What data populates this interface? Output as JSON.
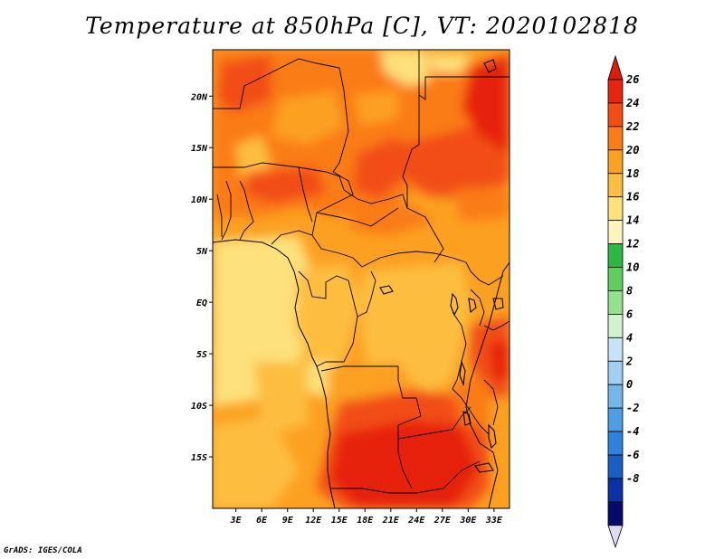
{
  "title": "Temperature at 850hPa [C], VT: 2020102818",
  "credit": "GrADS: IGES/COLA",
  "map": {
    "region": "Central Africa",
    "lat_ticks": [
      "20N",
      "15N",
      "10N",
      "5N",
      "EQ",
      "5S",
      "10S",
      "15S"
    ],
    "lat_values": [
      20,
      15,
      10,
      5,
      0,
      -5,
      -10,
      -15
    ],
    "lon_ticks": [
      "3E",
      "6E",
      "9E",
      "12E",
      "15E",
      "18E",
      "21E",
      "24E",
      "27E",
      "30E",
      "33E"
    ],
    "lon_values": [
      3,
      6,
      9,
      12,
      15,
      18,
      21,
      24,
      27,
      30,
      33
    ],
    "lat_range": [
      -20,
      24.5
    ],
    "lon_range": [
      0.3,
      34.8
    ]
  },
  "colorbar": {
    "labels": [
      "26",
      "24",
      "22",
      "20",
      "18",
      "16",
      "14",
      "12",
      "10",
      "8",
      "6",
      "4",
      "2",
      "0",
      "-2",
      "-4",
      "-6",
      "-8"
    ],
    "colors": [
      "#e6240f",
      "#f24d12",
      "#fa7c19",
      "#fca022",
      "#fdbe41",
      "#fde17c",
      "#fff5bd",
      "#2db843",
      "#5fce5c",
      "#95e28d",
      "#cff3ce",
      "#c6e4f6",
      "#9fcff1",
      "#74b6ea",
      "#4d9fe4",
      "#2f83da",
      "#1a5ec4",
      "#0c31a3",
      "#070a6a"
    ],
    "over_color": "#d91e0e",
    "under_color": "#dcdcf5"
  }
}
